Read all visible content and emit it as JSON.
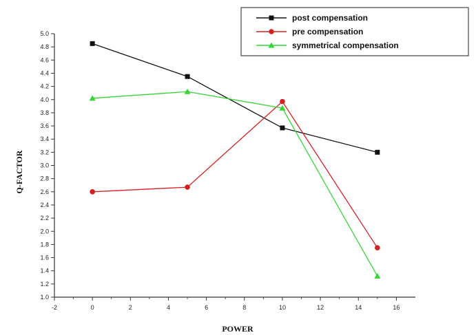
{
  "chart_data": {
    "type": "line",
    "title": "",
    "xlabel": "POWER",
    "ylabel": "Q-FACTOR",
    "xlim": [
      -2,
      17
    ],
    "ylim": [
      1.0,
      5.0
    ],
    "xticks": [
      -2,
      0,
      2,
      4,
      6,
      8,
      10,
      12,
      14,
      16
    ],
    "yticks": [
      1.0,
      1.2,
      1.4,
      1.6,
      1.8,
      2.0,
      2.2,
      2.4,
      2.6,
      2.8,
      3.0,
      3.2,
      3.4,
      3.6,
      3.8,
      4.0,
      4.2,
      4.4,
      4.6,
      4.8,
      5.0
    ],
    "x": [
      0,
      5,
      10,
      15
    ],
    "grid": false,
    "legend_position": "top-right",
    "series": [
      {
        "name": "post compensation",
        "values": [
          4.85,
          4.35,
          3.57,
          3.2
        ],
        "color": "#111111",
        "marker": "square"
      },
      {
        "name": "pre compensation",
        "values": [
          2.6,
          2.67,
          3.97,
          1.75
        ],
        "color": "#d32020",
        "marker": "circle"
      },
      {
        "name": "symmetrical compensation",
        "values": [
          4.02,
          4.12,
          3.87,
          1.32
        ],
        "color": "#33d633",
        "marker": "triangle"
      }
    ]
  }
}
